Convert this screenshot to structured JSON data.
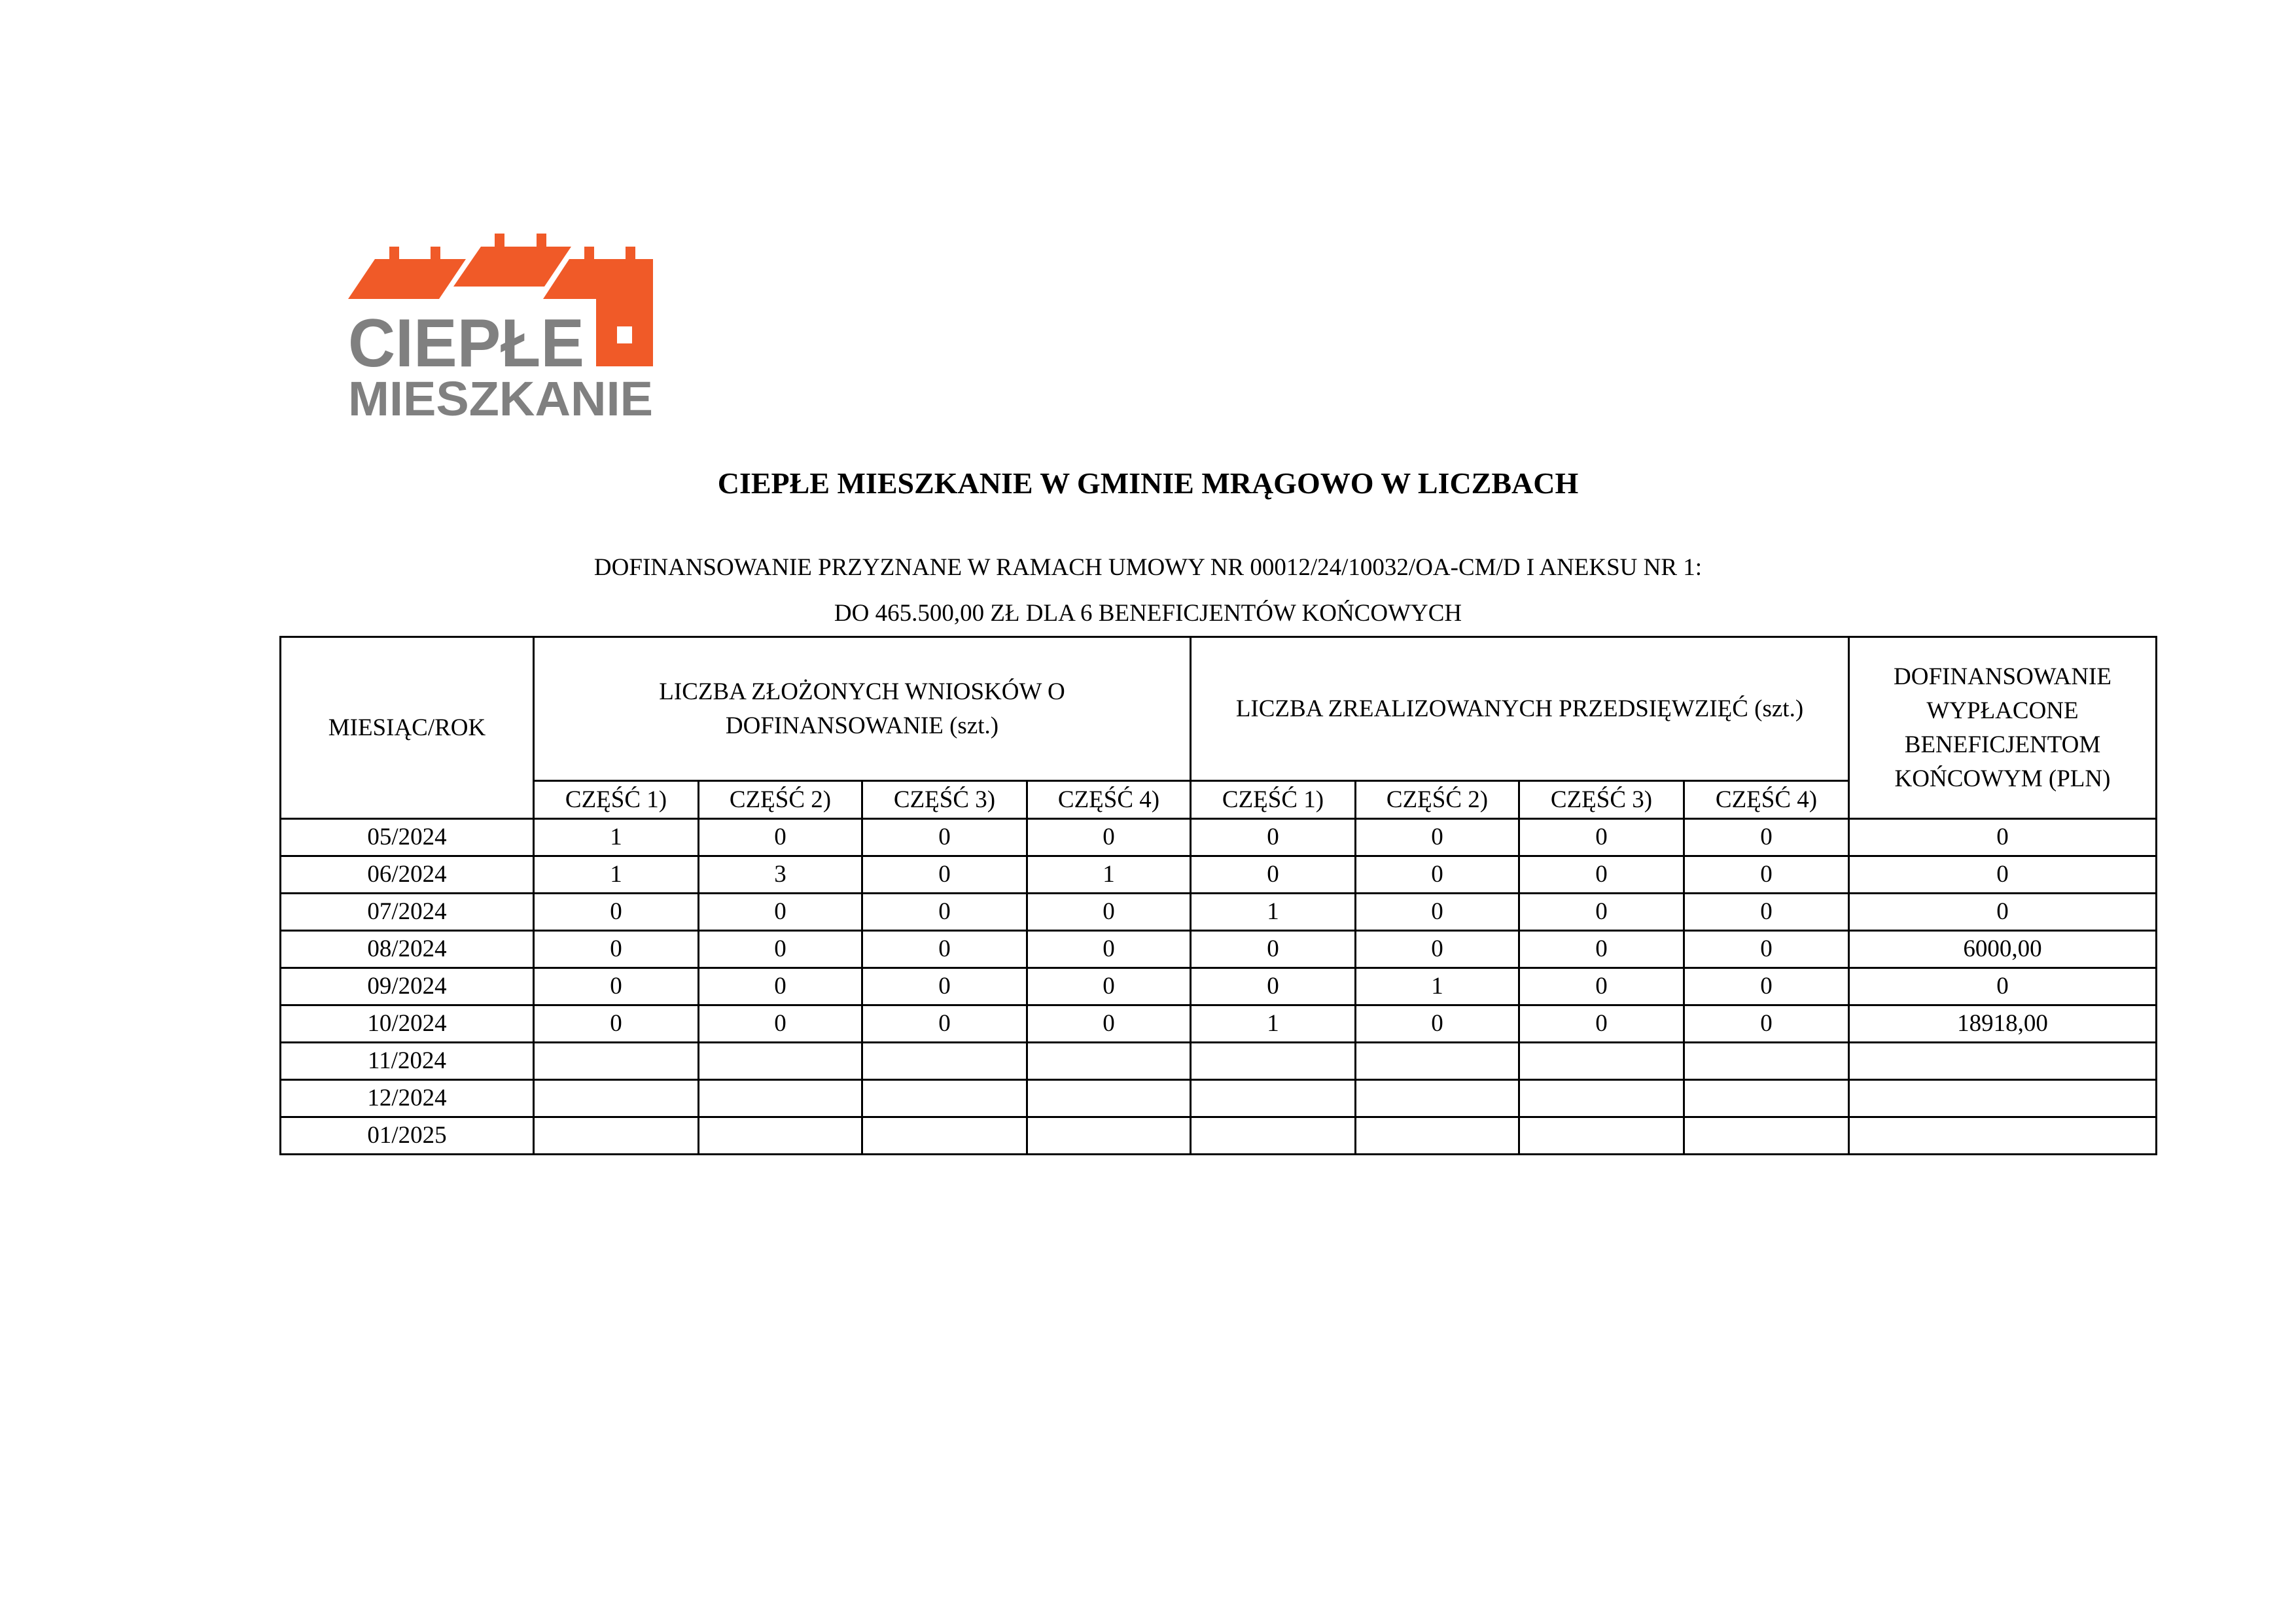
{
  "logo": {
    "line1": "CIEPŁE",
    "line2": "MIESZKANIE",
    "colors": {
      "roof": "#F05A28",
      "text": "#808080"
    }
  },
  "title": "CIEPŁE MIESZKANIE W GMINIE MRĄGOWO W LICZBACH",
  "subtitle": {
    "line1": "DOFINANSOWANIE PRZYZNANE W RAMACH UMOWY NR 00012/24/10032/OA-CM/D I ANEKSU NR 1:",
    "line2": "DO 465.500,00 ZŁ DLA 6 BENEFICJENTÓW KOŃCOWYCH"
  },
  "table": {
    "headers": {
      "month": "MIESIĄC/ROK",
      "applications": "LICZBA ZŁOŻONYCH WNIOSKÓW O DOFINANSOWANIE (szt.)",
      "projects": "LICZBA ZREALIZOWANYCH PRZEDSIĘWZIĘĆ (szt.)",
      "paid": "DOFINANSOWANIE WYPŁACONE BENEFICJENTOM KOŃCOWYM (PLN)",
      "parts": [
        "CZĘŚĆ 1)",
        "CZĘŚĆ 2)",
        "CZĘŚĆ 3)",
        "CZĘŚĆ 4)",
        "CZĘŚĆ 1)",
        "CZĘŚĆ 2)",
        "CZĘŚĆ 3)",
        "CZĘŚĆ 4)"
      ]
    },
    "rows": [
      [
        "05/2024",
        "1",
        "0",
        "0",
        "0",
        "0",
        "0",
        "0",
        "0",
        "0"
      ],
      [
        "06/2024",
        "1",
        "3",
        "0",
        "1",
        "0",
        "0",
        "0",
        "0",
        "0"
      ],
      [
        "07/2024",
        "0",
        "0",
        "0",
        "0",
        "1",
        "0",
        "0",
        "0",
        "0"
      ],
      [
        "08/2024",
        "0",
        "0",
        "0",
        "0",
        "0",
        "0",
        "0",
        "0",
        "6000,00"
      ],
      [
        "09/2024",
        "0",
        "0",
        "0",
        "0",
        "0",
        "1",
        "0",
        "0",
        "0"
      ],
      [
        "10/2024",
        "0",
        "0",
        "0",
        "0",
        "1",
        "0",
        "0",
        "0",
        "18918,00"
      ],
      [
        "11/2024",
        "",
        "",
        "",
        "",
        "",
        "",
        "",
        "",
        ""
      ],
      [
        "12/2024",
        "",
        "",
        "",
        "",
        "",
        "",
        "",
        "",
        ""
      ],
      [
        "01/2025",
        "",
        "",
        "",
        "",
        "",
        "",
        "",
        "",
        ""
      ]
    ]
  }
}
